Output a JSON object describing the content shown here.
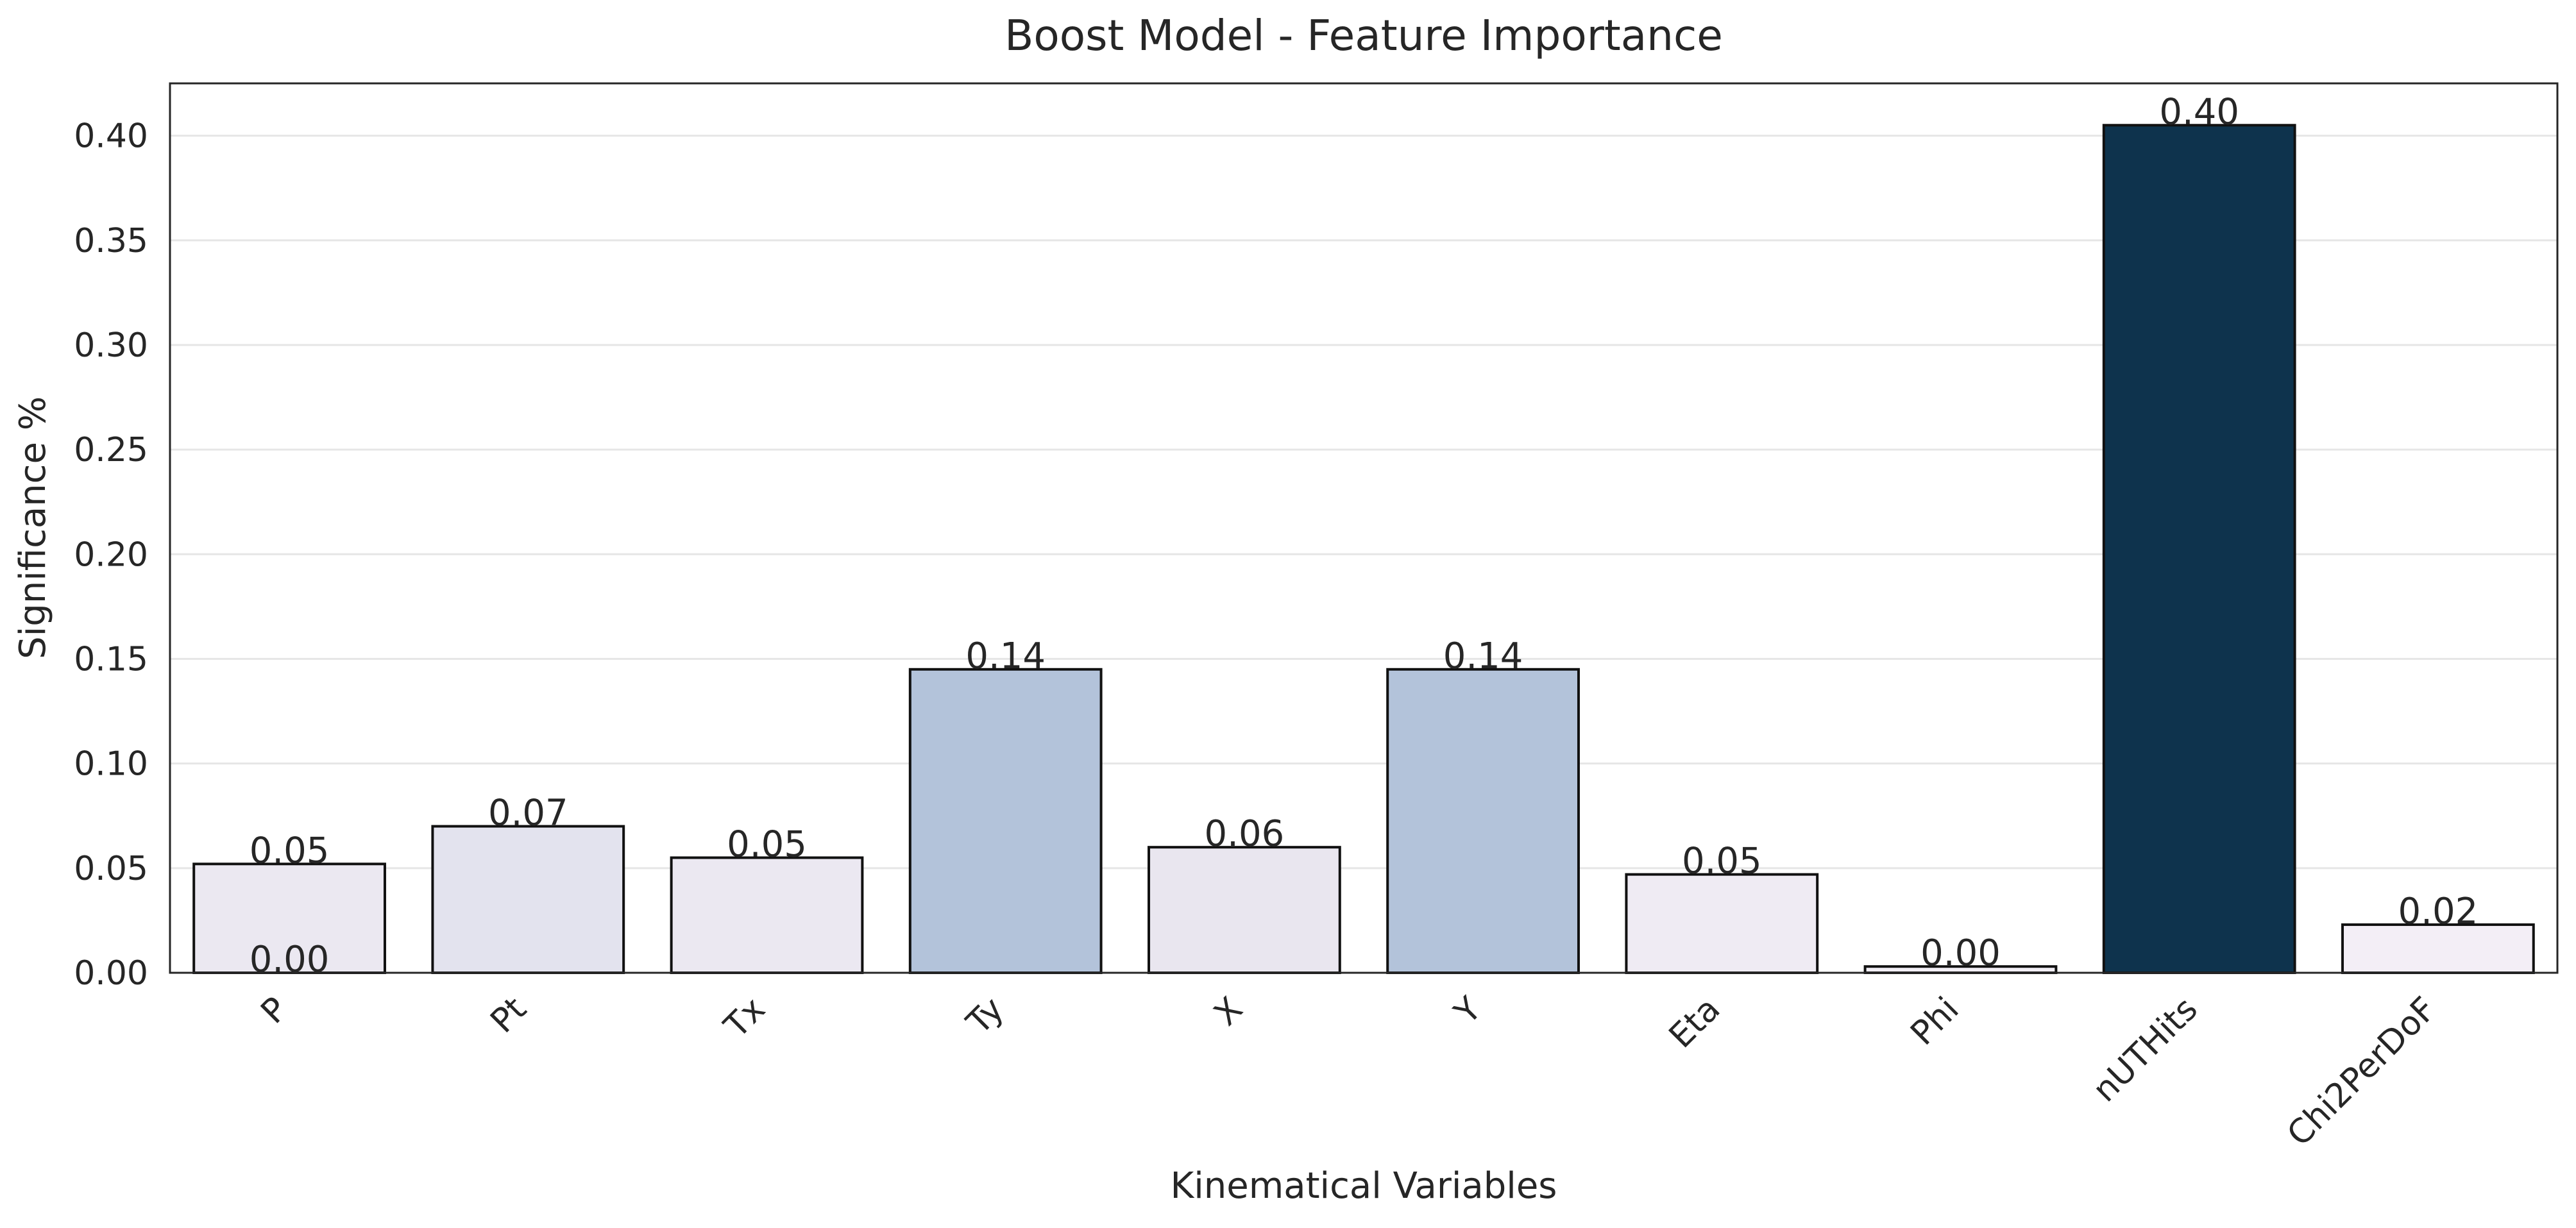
{
  "chart_data": {
    "type": "bar",
    "title": "Boost Model - Feature Importance",
    "xlabel": "Kinematical Variables",
    "ylabel": "Significance %",
    "categories": [
      "P",
      "Pt",
      "Tx",
      "Ty",
      "X",
      "Y",
      "Eta",
      "Phi",
      "nUTHits",
      "Chi2PerDoF"
    ],
    "values": [
      0.052,
      0.07,
      0.055,
      0.145,
      0.06,
      0.145,
      0.047,
      0.003,
      0.405,
      0.023
    ],
    "bar_labels": [
      "0.05",
      "0.07",
      "0.05",
      "0.14",
      "0.06",
      "0.14",
      "0.05",
      "0.00",
      "0.40",
      "0.02"
    ],
    "extra_annotations": [
      {
        "category": "P",
        "y": 0.0,
        "text": "0.00"
      }
    ],
    "bar_colors": [
      "#ebe8f1",
      "#e3e3ee",
      "#ebe8f1",
      "#b3c3da",
      "#e9e6ef",
      "#b3c3da",
      "#efebf3",
      "#f2eef5",
      "#0e334d",
      "#f3eef6"
    ],
    "ylim": [
      0,
      0.425
    ],
    "yticks": [
      0.0,
      0.05,
      0.1,
      0.15,
      0.2,
      0.25,
      0.3,
      0.35,
      0.4
    ],
    "ytick_labels": [
      "0.00",
      "0.05",
      "0.10",
      "0.15",
      "0.20",
      "0.25",
      "0.30",
      "0.35",
      "0.40"
    ],
    "grid": "horizontal",
    "xtick_rotation": 45,
    "legend": "none"
  }
}
